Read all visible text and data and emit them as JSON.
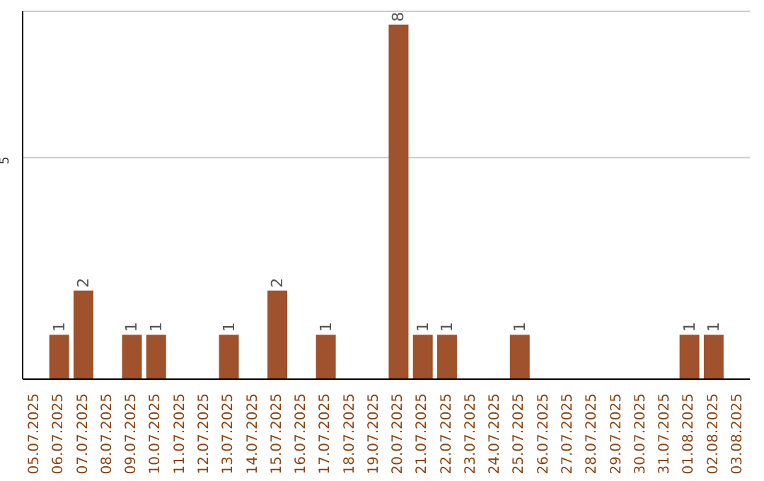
{
  "chart_data": {
    "type": "bar",
    "categories": [
      "05.07.2025",
      "06.07.2025",
      "07.07.2025",
      "08.07.2025",
      "09.07.2025",
      "10.07.2025",
      "11.07.2025",
      "12.07.2025",
      "13.07.2025",
      "14.07.2025",
      "15.07.2025",
      "16.07.2025",
      "17.07.2025",
      "18.07.2025",
      "19.07.2025",
      "20.07.2025",
      "21.07.2025",
      "22.07.2025",
      "23.07.2025",
      "24.07.2025",
      "25.07.2025",
      "26.07.2025",
      "27.07.2025",
      "28.07.2025",
      "29.07.2025",
      "30.07.2025",
      "31.07.2025",
      "01.08.2025",
      "02.08.2025",
      "03.08.2025"
    ],
    "values": [
      0,
      1,
      2,
      0,
      1,
      1,
      0,
      0,
      1,
      0,
      2,
      0,
      1,
      0,
      0,
      8,
      1,
      1,
      0,
      0,
      1,
      0,
      0,
      0,
      0,
      0,
      0,
      1,
      1,
      0
    ],
    "value_labels": [
      null,
      "1",
      "2",
      null,
      "1",
      "1",
      null,
      null,
      "1",
      null,
      "2",
      null,
      "1",
      null,
      null,
      "8",
      "1",
      "1",
      null,
      null,
      "1",
      null,
      null,
      null,
      null,
      null,
      null,
      "1",
      "1",
      null
    ],
    "color": "#a0522d",
    "ylim": [
      0,
      8.3
    ],
    "yticks": [
      5
    ],
    "grid": "y",
    "legend": false
  }
}
